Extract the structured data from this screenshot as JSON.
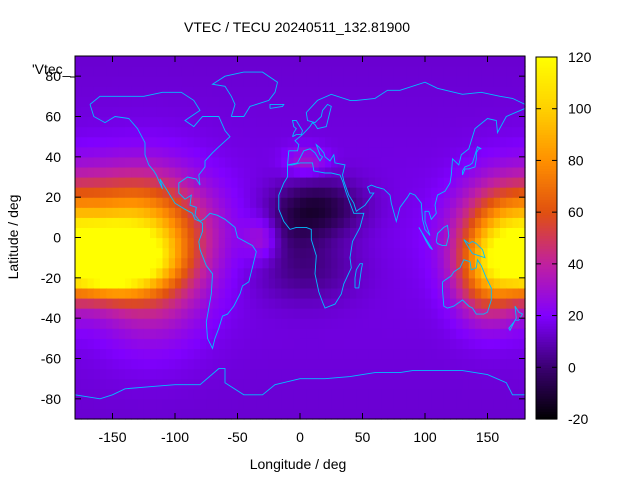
{
  "chart_data": {
    "type": "heatmap",
    "title": "VTEC / TECU 20240511_132.81900",
    "xlabel": "Longitude / deg",
    "ylabel": "Latitude / deg",
    "plot_key": "'Vtec_",
    "xlim": [
      -180,
      180
    ],
    "ylim": [
      -90,
      90
    ],
    "x_ticks": [
      -150,
      -100,
      -50,
      0,
      50,
      100,
      150
    ],
    "y_ticks": [
      -80,
      -60,
      -40,
      -20,
      0,
      20,
      40,
      60,
      80
    ],
    "colorbar": {
      "range": [
        -20,
        120
      ],
      "ticks": [
        -20,
        0,
        20,
        40,
        60,
        80,
        100,
        120
      ],
      "palette": [
        "#000000",
        "#3a0070",
        "#8000ff",
        "#c020a0",
        "#e05010",
        "#ff9000",
        "#ffd000",
        "#ffff00"
      ]
    },
    "background_level": 18,
    "enhancements": [
      {
        "lon": -155,
        "lat": -12,
        "peak": 110,
        "width_lon": 28,
        "width_lat": 10
      },
      {
        "lon": -140,
        "lat": 5,
        "peak": 52,
        "width_lon": 40,
        "width_lat": 18
      },
      {
        "lon": -120,
        "lat": -10,
        "peak": 40,
        "width_lon": 30,
        "width_lat": 25
      },
      {
        "lon": 165,
        "lat": 0,
        "peak": 58,
        "width_lon": 25,
        "width_lat": 18
      },
      {
        "lon": 150,
        "lat": -20,
        "peak": 38,
        "width_lon": 18,
        "width_lat": 15
      },
      {
        "lon": 5,
        "lat": 38,
        "peak": 16,
        "width_lon": 12,
        "width_lat": 5
      },
      {
        "lon": -30,
        "lat": 0,
        "peak": 18,
        "width_lon": 10,
        "width_lat": 8
      }
    ],
    "depletions": [
      {
        "lon": 15,
        "lat": 15,
        "depth": 25,
        "width_lon": 25,
        "width_lat": 10
      },
      {
        "lon": 5,
        "lat": -15,
        "depth": 14,
        "width_lon": 30,
        "width_lat": 12
      },
      {
        "lon": -10,
        "lat": 5,
        "depth": 10,
        "width_lon": 20,
        "width_lat": 10
      }
    ],
    "colors": {
      "coastline": "#00bfff",
      "axis": "#000000"
    }
  }
}
